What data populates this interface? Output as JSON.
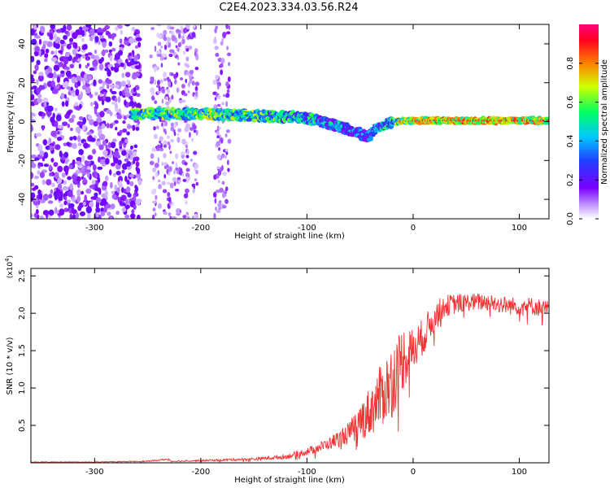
{
  "title": "C2E4.2023.334.03.56.R24",
  "colors": {
    "spectrum_low": "#7a00ff",
    "spectrum_high": "#ff0040",
    "snr_line": "#ee3333",
    "axis": "#000000"
  },
  "chart_data": [
    {
      "type": "heatmap",
      "name": "spectrogram",
      "xlabel": "Height of straight line (km)",
      "ylabel": "Frequency (Hz)",
      "xlim": [
        -360,
        128
      ],
      "ylim": [
        -50,
        50
      ],
      "xticks": [
        -300,
        -200,
        -100,
        0,
        100
      ],
      "yticks": [
        -40,
        -20,
        0,
        20,
        40
      ],
      "colorbar": {
        "label": "Normalized spectral amplitude",
        "range": [
          0.0,
          1.0
        ],
        "ticks": [
          "0.0",
          "0.2",
          "0.4",
          "0.6",
          "0.8"
        ],
        "colormap": "rainbow (violet → blue → cyan → green → yellow → red → magenta)"
      },
      "signal_track": [
        {
          "x": -265,
          "freq": 4,
          "amp": 0.7
        },
        {
          "x": -200,
          "freq": 4,
          "amp": 0.75
        },
        {
          "x": -150,
          "freq": 3,
          "amp": 0.7
        },
        {
          "x": -100,
          "freq": 2,
          "amp": 0.6
        },
        {
          "x": -80,
          "freq": -1,
          "amp": 0.55
        },
        {
          "x": -60,
          "freq": -4,
          "amp": 0.5
        },
        {
          "x": -42,
          "freq": -8,
          "amp": 0.45
        },
        {
          "x": -35,
          "freq": -3,
          "amp": 0.5
        },
        {
          "x": -20,
          "freq": 0,
          "amp": 0.7
        },
        {
          "x": 0,
          "freq": 0.5,
          "amp": 0.9
        },
        {
          "x": 60,
          "freq": 0.5,
          "amp": 0.9
        },
        {
          "x": 128,
          "freq": 0.5,
          "amp": 0.9
        }
      ],
      "noise_region": {
        "x_from": -360,
        "x_to": -265,
        "freq_range": [
          -50,
          50
        ]
      },
      "secondary_noise_bands": [
        -240,
        -225,
        -210,
        -180
      ]
    },
    {
      "type": "line",
      "name": "snr",
      "xlabel": "Height of straight line (km)",
      "ylabel": "SNR (10 * v/v)",
      "yscale_label": "(x10^4)",
      "xlim": [
        -360,
        128
      ],
      "ylim": [
        0,
        2.6
      ],
      "xticks": [
        -300,
        -200,
        -100,
        0,
        100
      ],
      "yticks": [
        0.5,
        1.0,
        1.5,
        2.0,
        2.5
      ],
      "series": [
        {
          "color": "#ee3333",
          "x": [
            -360,
            -300,
            -250,
            -230,
            -228,
            -200,
            -150,
            -120,
            -100,
            -80,
            -60,
            -40,
            -20,
            -10,
            0,
            10,
            20,
            30,
            50,
            70,
            90,
            110,
            128
          ],
          "y": [
            0.01,
            0.01,
            0.02,
            0.05,
            0.02,
            0.03,
            0.05,
            0.08,
            0.15,
            0.25,
            0.4,
            0.7,
            1.1,
            1.4,
            1.5,
            1.7,
            1.95,
            2.1,
            2.15,
            2.15,
            2.1,
            2.1,
            2.05
          ],
          "noise_amplitude": [
            0.005,
            0.005,
            0.008,
            0.01,
            0.01,
            0.01,
            0.02,
            0.03,
            0.05,
            0.08,
            0.15,
            0.35,
            0.5,
            0.45,
            0.3,
            0.25,
            0.2,
            0.15,
            0.12,
            0.12,
            0.12,
            0.12,
            0.12
          ]
        }
      ]
    }
  ]
}
